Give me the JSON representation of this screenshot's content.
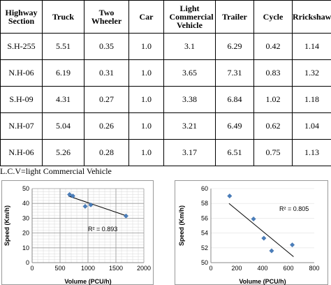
{
  "table": {
    "headers": [
      "Highway Section",
      "Truck",
      "Two Wheeler",
      "Car",
      "Light Commercial Vehicle",
      "Trailer",
      "Cycle",
      "Rrickshaw"
    ],
    "rows": [
      [
        "S.H-255",
        "5.51",
        "0.35",
        "1.0",
        "3.1",
        "6.29",
        "0.42",
        "1.14"
      ],
      [
        "N.H-06",
        "6.19",
        "0.31",
        "1.0",
        "3.65",
        "7.31",
        "0.83",
        "1.32"
      ],
      [
        "S.H-09",
        "4.31",
        "0.27",
        "1.0",
        "3.38",
        "6.84",
        "1.02",
        "1.18"
      ],
      [
        "N.H-07",
        "5.04",
        "0.26",
        "1.0",
        "3.21",
        "6.49",
        "0.62",
        "1.04"
      ],
      [
        "N.H-06",
        "5.26",
        "0.28",
        "1.0",
        "3.17",
        "6.51",
        "0.75",
        "1.13"
      ]
    ]
  },
  "note": "L.C.V=light Commercial Vehicle",
  "chart_data": [
    {
      "type": "scatter",
      "xlabel": "Volume (PCU/h)",
      "ylabel": "Speed (Km/h)",
      "xlim": [
        0,
        2000
      ],
      "ylim": [
        0,
        50
      ],
      "xticks": [
        0,
        500,
        1000,
        1500,
        2000
      ],
      "yticks": [
        0,
        10,
        20,
        30,
        40,
        50
      ],
      "grid": true,
      "points": [
        [
          670,
          46
        ],
        [
          730,
          45
        ],
        [
          950,
          38
        ],
        [
          1050,
          39
        ],
        [
          1680,
          31.5
        ]
      ],
      "trendline": [
        [
          650,
          45
        ],
        [
          1700,
          31.5
        ]
      ],
      "annotation": "R² = 0.893",
      "marker_color": "#4a7ebb"
    },
    {
      "type": "scatter",
      "xlabel": "Volume (PCU/h)",
      "ylabel": "Speed (Km/h)",
      "xlim": [
        0,
        800
      ],
      "ylim": [
        50,
        60
      ],
      "xticks": [
        0,
        200,
        400,
        600,
        800
      ],
      "yticks": [
        50,
        52,
        54,
        56,
        58,
        60
      ],
      "grid": false,
      "points": [
        [
          145,
          59
        ],
        [
          330,
          55.9
        ],
        [
          410,
          53.3
        ],
        [
          470,
          51.6
        ],
        [
          630,
          52.4
        ]
      ],
      "trendline": [
        [
          140,
          58
        ],
        [
          640,
          50.8
        ]
      ],
      "annotation": "R² = 0.805",
      "marker_color": "#4a7ebb"
    }
  ]
}
